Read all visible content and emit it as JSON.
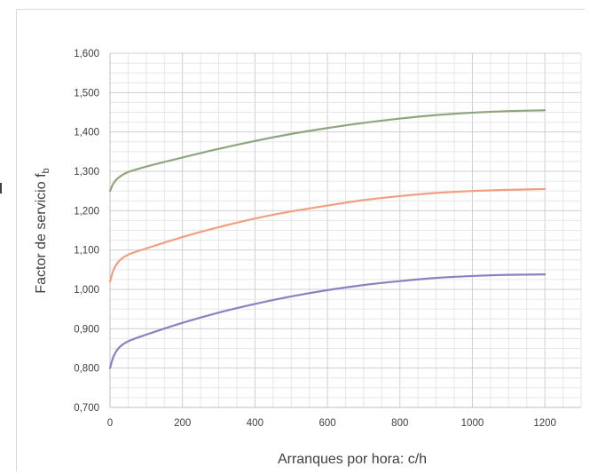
{
  "chart_data": {
    "type": "line",
    "xlabel": "Arranques por hora: c/h",
    "ylabel": "Factor de servicio f",
    "ylabel_subscript": "b",
    "xlim": [
      0,
      1300
    ],
    "ylim": [
      0.7,
      1.6
    ],
    "x_ticks": [
      0,
      200,
      400,
      600,
      800,
      1000,
      1200
    ],
    "x_tick_labels": [
      "0",
      "200",
      "400",
      "600",
      "800",
      "1000",
      "1200"
    ],
    "y_ticks": [
      0.7,
      0.8,
      0.9,
      1.0,
      1.1,
      1.2,
      1.3,
      1.4,
      1.5,
      1.6
    ],
    "y_tick_labels": [
      "0,700",
      "0,800",
      "0,900",
      "1,000",
      "1,100",
      "1,200",
      "1,300",
      "1,400",
      "1,500",
      "1,600"
    ],
    "grid": true,
    "legend": false,
    "series": [
      {
        "color": "#8fa57e",
        "x": [
          0,
          10,
          25,
          50,
          100,
          200,
          300,
          400,
          500,
          600,
          700,
          800,
          900,
          1000,
          1100,
          1200
        ],
        "y": [
          1.25,
          1.27,
          1.285,
          1.298,
          1.312,
          1.335,
          1.357,
          1.377,
          1.395,
          1.41,
          1.423,
          1.434,
          1.443,
          1.449,
          1.453,
          1.455
        ]
      },
      {
        "color": "#f0a07f",
        "x": [
          0,
          10,
          25,
          50,
          100,
          200,
          300,
          400,
          500,
          600,
          700,
          800,
          900,
          1000,
          1100,
          1200
        ],
        "y": [
          1.02,
          1.05,
          1.072,
          1.088,
          1.104,
          1.133,
          1.158,
          1.18,
          1.198,
          1.213,
          1.227,
          1.237,
          1.245,
          1.25,
          1.253,
          1.255
        ]
      },
      {
        "color": "#8e80c0",
        "x": [
          0,
          10,
          25,
          50,
          100,
          200,
          300,
          400,
          500,
          600,
          700,
          800,
          900,
          1000,
          1100,
          1200
        ],
        "y": [
          0.8,
          0.83,
          0.852,
          0.868,
          0.885,
          0.915,
          0.941,
          0.963,
          0.982,
          0.998,
          1.011,
          1.021,
          1.029,
          1.034,
          1.037,
          1.038
        ]
      }
    ]
  }
}
